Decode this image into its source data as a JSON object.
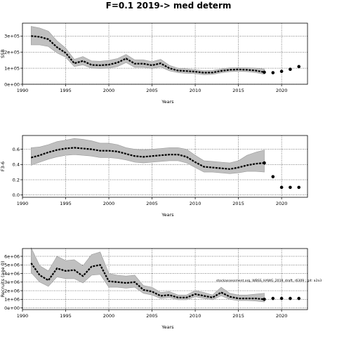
{
  "figure_title": "F=0.1 2019-> med determ",
  "annotation": "stockassessment.org, WBSS_HAWG_2019_draft, r6309 ; git: a2a3",
  "colors": {
    "band": "#c0c0c0",
    "line": "#000000",
    "point": "#000000",
    "grid": "#000000"
  },
  "chart_data": [
    {
      "type": "line",
      "title": "",
      "xlabel": "Years",
      "ylabel": "SSB",
      "xlim": [
        1990,
        2023
      ],
      "ylim": [
        0,
        380000
      ],
      "xticks": [
        "1990",
        "1995",
        "2000",
        "2005",
        "2010",
        "2015",
        "2020"
      ],
      "yticks": [
        {
          "value": 0,
          "label": "0e+00"
        },
        {
          "value": 100000,
          "label": "1e+05"
        },
        {
          "value": 200000,
          "label": "2e+05"
        },
        {
          "value": 300000,
          "label": "3e+05"
        }
      ],
      "grid": true,
      "x": [
        1991,
        1992,
        1993,
        1994,
        1995,
        1996,
        1997,
        1998,
        1999,
        2000,
        2001,
        2002,
        2003,
        2004,
        2005,
        2006,
        2007,
        2008,
        2009,
        2010,
        2011,
        2012,
        2013,
        2014,
        2015,
        2016,
        2017,
        2018
      ],
      "estimate": [
        300000,
        295000,
        280000,
        230000,
        195000,
        130000,
        145000,
        120000,
        118000,
        122000,
        135000,
        160000,
        128000,
        128000,
        118000,
        130000,
        100000,
        85000,
        82000,
        78000,
        72000,
        73000,
        83000,
        90000,
        92000,
        90000,
        85000,
        75000
      ],
      "upper": [
        360000,
        350000,
        330000,
        270000,
        225000,
        155000,
        172000,
        145000,
        143000,
        148000,
        160000,
        185000,
        152000,
        152000,
        140000,
        155000,
        118000,
        100000,
        96000,
        90000,
        85000,
        86000,
        95000,
        102000,
        103000,
        102000,
        100000,
        95000
      ],
      "lower": [
        245000,
        245000,
        235000,
        195000,
        168000,
        110000,
        120000,
        100000,
        98000,
        100000,
        110000,
        135000,
        105000,
        105000,
        98000,
        108000,
        84000,
        72000,
        68000,
        66000,
        60000,
        61000,
        71000,
        78000,
        80000,
        78000,
        72000,
        62000
      ],
      "forecast_x": [
        2018,
        2019,
        2020,
        2021,
        2022
      ],
      "forecast_y": [
        75000,
        72000,
        80000,
        93000,
        110000
      ]
    },
    {
      "type": "line",
      "title": "",
      "xlabel": "Years",
      "ylabel": "F3-6",
      "xlim": [
        1990,
        2023
      ],
      "ylim": [
        -0.03,
        0.78
      ],
      "xticks": [
        "1990",
        "1995",
        "2000",
        "2005",
        "2010",
        "2015",
        "2020"
      ],
      "yticks": [
        {
          "value": 0,
          "label": "0.0"
        },
        {
          "value": 0.2,
          "label": "0.2"
        },
        {
          "value": 0.4,
          "label": "0.4"
        },
        {
          "value": 0.6,
          "label": "0.6"
        }
      ],
      "grid": true,
      "x": [
        1991,
        1992,
        1993,
        1994,
        1995,
        1996,
        1997,
        1998,
        1999,
        2000,
        2001,
        2002,
        2003,
        2004,
        2005,
        2006,
        2007,
        2008,
        2009,
        2010,
        2011,
        2012,
        2013,
        2014,
        2015,
        2016,
        2017,
        2018
      ],
      "estimate": [
        0.49,
        0.52,
        0.56,
        0.59,
        0.61,
        0.62,
        0.61,
        0.6,
        0.58,
        0.58,
        0.57,
        0.54,
        0.51,
        0.5,
        0.51,
        0.52,
        0.53,
        0.53,
        0.5,
        0.43,
        0.37,
        0.36,
        0.35,
        0.34,
        0.36,
        0.39,
        0.41,
        0.42
      ],
      "upper": [
        0.62,
        0.63,
        0.66,
        0.7,
        0.72,
        0.74,
        0.73,
        0.71,
        0.68,
        0.68,
        0.66,
        0.62,
        0.6,
        0.59,
        0.6,
        0.61,
        0.62,
        0.62,
        0.6,
        0.52,
        0.45,
        0.44,
        0.43,
        0.42,
        0.45,
        0.52,
        0.56,
        0.59
      ],
      "lower": [
        0.39,
        0.43,
        0.47,
        0.5,
        0.52,
        0.53,
        0.52,
        0.51,
        0.49,
        0.49,
        0.48,
        0.46,
        0.43,
        0.42,
        0.43,
        0.44,
        0.45,
        0.45,
        0.42,
        0.36,
        0.3,
        0.3,
        0.29,
        0.28,
        0.29,
        0.31,
        0.31,
        0.3
      ],
      "forecast_x": [
        2018,
        2019,
        2020,
        2021,
        2022
      ],
      "forecast_y": [
        0.42,
        0.24,
        0.1,
        0.1,
        0.1
      ]
    },
    {
      "type": "line",
      "title": "",
      "xlabel": "Years",
      "ylabel": "Recruits (age 0)",
      "xlim": [
        1990,
        2023
      ],
      "ylim": [
        -200000,
        6900000
      ],
      "xticks": [
        "1990",
        "1995",
        "2000",
        "2005",
        "2010",
        "2015",
        "2020"
      ],
      "yticks": [
        {
          "value": 0,
          "label": "0e+00"
        },
        {
          "value": 1000000,
          "label": "1e+06"
        },
        {
          "value": 2000000,
          "label": "2e+06"
        },
        {
          "value": 3000000,
          "label": "3e+06"
        },
        {
          "value": 4000000,
          "label": "4e+06"
        },
        {
          "value": 5000000,
          "label": "5e+06"
        },
        {
          "value": 6000000,
          "label": "6e+06"
        }
      ],
      "grid": true,
      "x": [
        1991,
        1992,
        1993,
        1994,
        1995,
        1996,
        1997,
        1998,
        1999,
        2000,
        2001,
        2002,
        2003,
        2004,
        2005,
        2006,
        2007,
        2008,
        2009,
        2010,
        2011,
        2012,
        2013,
        2014,
        2015,
        2016,
        2017,
        2018
      ],
      "estimate": [
        5200000,
        3800000,
        3200000,
        4600000,
        4300000,
        4400000,
        3700000,
        4800000,
        5000000,
        3100000,
        3000000,
        2900000,
        3000000,
        2100000,
        1900000,
        1400000,
        1500000,
        1200000,
        1200000,
        1600000,
        1400000,
        1200000,
        1800000,
        1300000,
        1100000,
        1100000,
        1100000,
        1000000
      ],
      "upper": [
        7000000,
        4900000,
        4300000,
        6000000,
        5500000,
        5600000,
        4900000,
        6200000,
        6500000,
        4000000,
        3800000,
        3700000,
        3800000,
        2600000,
        2400000,
        1800000,
        1900000,
        1500000,
        1500000,
        2000000,
        1800000,
        1500000,
        2400000,
        1700000,
        1500000,
        1500000,
        1600000,
        1700000
      ],
      "lower": [
        4100000,
        3000000,
        2500000,
        3600000,
        3400000,
        3400000,
        2900000,
        3800000,
        3900000,
        2400000,
        2400000,
        2300000,
        2400000,
        1700000,
        1500000,
        1100000,
        1200000,
        950000,
        950000,
        1300000,
        1100000,
        950000,
        1400000,
        1000000,
        850000,
        850000,
        800000,
        700000
      ],
      "forecast_x": [
        2018,
        2019,
        2020,
        2021,
        2022
      ],
      "forecast_y": [
        1000000,
        1100000,
        1100000,
        1100000,
        1100000
      ]
    }
  ]
}
